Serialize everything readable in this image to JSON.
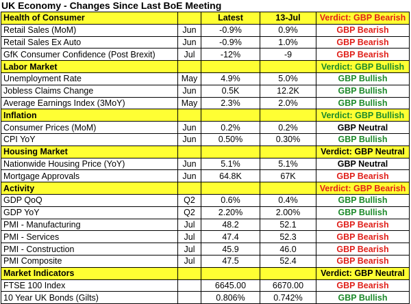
{
  "title": "UK Economy - Changes Since Last BoE Meeting",
  "header": {
    "latest": "Latest",
    "previous": "13-Jul"
  },
  "colors": {
    "section_bg": "#ffff33",
    "bearish": "#e0201a",
    "bullish": "#1c8a2a",
    "neutral": "#000000"
  },
  "sections": [
    {
      "name": "Health of Consumer",
      "verdict": "Verdict: GBP Bearish",
      "verdict_class": "bearish",
      "rows": [
        {
          "name": "Retail Sales (MoM)",
          "period": "Jun",
          "latest": "-0.9%",
          "previous": "0.9%",
          "verdict": "GBP Bearish",
          "cls": "bearish"
        },
        {
          "name": "Retail Sales Ex Auto",
          "period": "Jun",
          "latest": "-0.9%",
          "previous": "1.0%",
          "verdict": "GBP Bearish",
          "cls": "bearish"
        },
        {
          "name": "GfK Consumer Confidence (Post Brexit)",
          "period": "Jul",
          "latest": "-12%",
          "previous": "-9",
          "verdict": "GBP Bearish",
          "cls": "bearish"
        }
      ]
    },
    {
      "name": "Labor Market",
      "verdict": "Verdict: GBP Bullish",
      "verdict_class": "bullish",
      "rows": [
        {
          "name": "Unemployment Rate",
          "period": "May",
          "latest": "4.9%",
          "previous": "5.0%",
          "verdict": "GBP Bullish",
          "cls": "bullish"
        },
        {
          "name": "Jobless Claims Change",
          "period": "Jun",
          "latest": "0.5K",
          "previous": "12.2K",
          "verdict": "GBP Bullish",
          "cls": "bullish"
        },
        {
          "name": "Average Earnings Index (3MoY)",
          "period": "May",
          "latest": "2.3%",
          "previous": "2.0%",
          "verdict": "GBP Bullish",
          "cls": "bullish"
        }
      ]
    },
    {
      "name": "Inflation",
      "verdict": "Verdict: GBP Bullish",
      "verdict_class": "bullish",
      "rows": [
        {
          "name": "Consumer Prices (MoM)",
          "period": "Jun",
          "latest": "0.2%",
          "previous": "0.2%",
          "verdict": "GBP Neutral",
          "cls": "neutral"
        },
        {
          "name": "CPI YoY",
          "period": "Jun",
          "latest": "0.50%",
          "previous": "0.30%",
          "verdict": "GBP Bullish",
          "cls": "bullish"
        }
      ]
    },
    {
      "name": "Housing Market",
      "verdict": "Verdict: GBP Neutral",
      "verdict_class": "neutral",
      "rows": [
        {
          "name": "Nationwide Housing Price (YoY)",
          "period": "Jun",
          "latest": "5.1%",
          "previous": "5.1%",
          "verdict": "GBP Neutral",
          "cls": "neutral"
        },
        {
          "name": "Mortgage Approvals",
          "period": "Jun",
          "latest": "64.8K",
          "previous": "67K",
          "verdict": "GBP Bearish",
          "cls": "bearish"
        }
      ]
    },
    {
      "name": "Activity",
      "verdict": "Verdict: GBP Bearish",
      "verdict_class": "bearish",
      "rows": [
        {
          "name": "GDP QoQ",
          "period": "Q2",
          "latest": "0.6%",
          "previous": "0.4%",
          "verdict": "GBP Bullish",
          "cls": "bullish"
        },
        {
          "name": "GDP YoY",
          "period": "Q2",
          "latest": "2.20%",
          "previous": "2.00%",
          "verdict": "GBP Bullish",
          "cls": "bullish"
        },
        {
          "name": "PMI - Manufacturing",
          "period": "Jul",
          "latest": "48.2",
          "previous": "52.1",
          "verdict": "GBP Bearish",
          "cls": "bearish"
        },
        {
          "name": "PMI - Services",
          "period": "Jul",
          "latest": "47.4",
          "previous": "52.3",
          "verdict": "GBP Bearish",
          "cls": "bearish"
        },
        {
          "name": "PMI - Construction",
          "period": "Jul",
          "latest": "45.9",
          "previous": "46.0",
          "verdict": "GBP Bearish",
          "cls": "bearish"
        },
        {
          "name": "PMI Composite",
          "period": "Jul",
          "latest": "47.5",
          "previous": "52.4",
          "verdict": "GBP Bearish",
          "cls": "bearish"
        }
      ]
    },
    {
      "name": "Market Indicators",
      "verdict": "Verdict: GBP Neutral",
      "verdict_class": "neutral",
      "rows": [
        {
          "name": "FTSE 100 Index",
          "period": "",
          "latest": "6645.00",
          "previous": "6670.00",
          "verdict": "GBP Bearish",
          "cls": "bearish"
        },
        {
          "name": "10 Year UK Bonds (Gilts)",
          "period": "",
          "latest": "0.806%",
          "previous": "0.742%",
          "verdict": "GBP Bullish",
          "cls": "bullish"
        }
      ]
    }
  ]
}
